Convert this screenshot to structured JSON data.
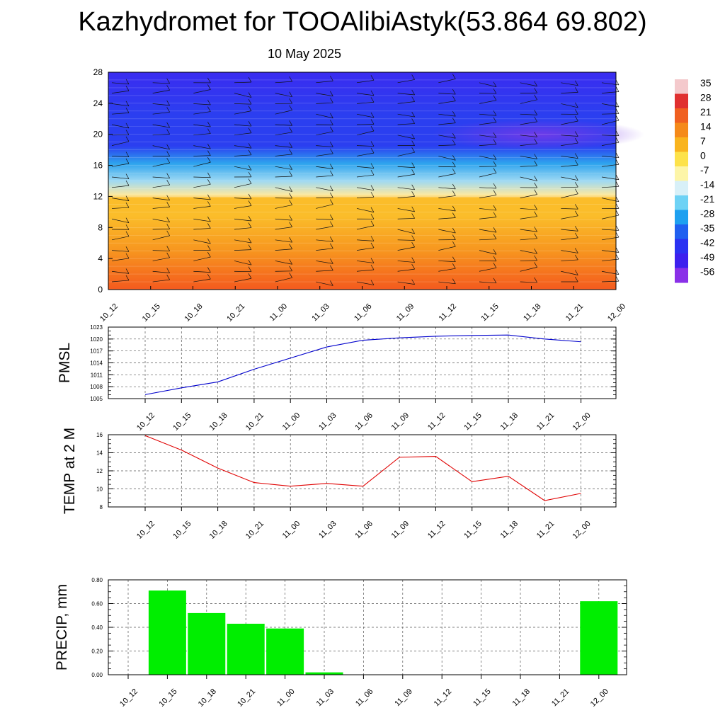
{
  "title": "Kazhydromet for TOOAlibiAstyk(53.864 69.802)",
  "date": "10 May 2025",
  "chart_data": [
    {
      "type": "heatmap",
      "description_free": true,
      "x_labels": [
        "10_12",
        "10_15",
        "10_18",
        "10_21",
        "11_00",
        "11_03",
        "11_06",
        "11_09",
        "11_12",
        "11_15",
        "11_18",
        "11_21",
        "12_00"
      ],
      "y_ticks": [
        "0",
        "4",
        "8",
        "12",
        "16",
        "20",
        "24",
        "28"
      ],
      "ylim": [
        0,
        28
      ],
      "colorbar": {
        "labels": [
          "35",
          "28",
          "21",
          "14",
          "7",
          "0",
          "-7",
          "-14",
          "-21",
          "-28",
          "-35",
          "-42",
          "-49",
          "-56"
        ],
        "colors": [
          "#f4c9cc",
          "#e03030",
          "#f06020",
          "#f58a1a",
          "#f9b41e",
          "#fde24a",
          "#fdf5a8",
          "#d8f0f8",
          "#6ed2f5",
          "#1ea0f0",
          "#2060f0",
          "#2a32f2",
          "#3d20ee",
          "#8a30e8"
        ]
      },
      "field_colors": {
        "surface": "#f45a1e",
        "low": "#f7961f",
        "mid": "#fbbd2a",
        "freezing": "#fde9a0",
        "upper_light": "#9ed9f3",
        "upper_mid": "#2ea4ee",
        "upper": "#2b3ff0",
        "top": "#3a2cf0",
        "cold_core": "#7a3ae6"
      }
    },
    {
      "type": "line",
      "ylabel": "PMSL",
      "x": [
        "10_12",
        "10_15",
        "10_18",
        "10_21",
        "11_00",
        "11_03",
        "11_06",
        "11_09",
        "11_12",
        "11_15",
        "11_18",
        "11_21",
        "12_00"
      ],
      "y_ticks": [
        "1005",
        "1008",
        "1011",
        "1014",
        "1017",
        "1020",
        "1023"
      ],
      "ylim": [
        1005,
        1023
      ],
      "series": [
        {
          "values": [
            1006.0,
            1007.7,
            1009.2,
            1012.4,
            1015.2,
            1018.0,
            1019.7,
            1020.3,
            1020.7,
            1020.9,
            1021.0,
            1020.0,
            1019.3
          ],
          "color": "#0000cc"
        }
      ],
      "grid": true
    },
    {
      "type": "line",
      "ylabel": "TEMP at 2 M",
      "x": [
        "10_12",
        "10_15",
        "10_18",
        "10_21",
        "11_00",
        "11_03",
        "11_06",
        "11_09",
        "11_12",
        "11_15",
        "11_18",
        "11_21",
        "12_00"
      ],
      "y_ticks": [
        "8",
        "10",
        "12",
        "14",
        "16"
      ],
      "ylim": [
        8,
        16
      ],
      "series": [
        {
          "values": [
            15.9,
            14.3,
            12.3,
            10.7,
            10.3,
            10.6,
            10.3,
            13.5,
            13.6,
            10.8,
            11.4,
            8.7,
            9.5
          ],
          "color": "#e00000"
        }
      ],
      "grid": true
    },
    {
      "type": "bar",
      "ylabel": "PRECIP, mm",
      "categories": [
        "10_12",
        "10_15",
        "10_18",
        "10_21",
        "11_00",
        "11_03",
        "11_06",
        "11_09",
        "11_12",
        "11_15",
        "11_18",
        "11_21",
        "12_00"
      ],
      "y_ticks": [
        "0.00",
        "0.20",
        "0.40",
        "0.60",
        "0.80"
      ],
      "ylim": [
        0,
        0.8
      ],
      "values": [
        0,
        0.71,
        0.52,
        0.43,
        0.39,
        0.02,
        0,
        0,
        0,
        0,
        0,
        0,
        0.62
      ],
      "color": "#00ee00",
      "grid": true
    }
  ]
}
